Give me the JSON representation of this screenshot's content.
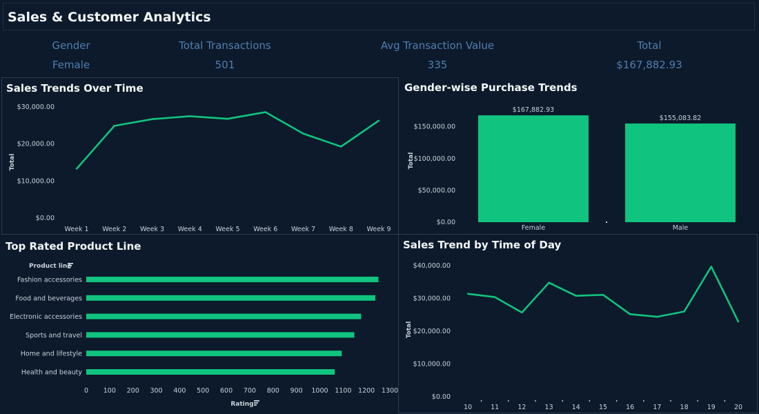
{
  "header": {
    "title": "Sales & Customer Analytics"
  },
  "kpis": [
    {
      "label": "Gender",
      "value": "Female"
    },
    {
      "label": "Total Transactions",
      "value": "501"
    },
    {
      "label": "Avg Transaction Value",
      "value": "335"
    },
    {
      "label": "Total",
      "value": "$167,882.93"
    }
  ],
  "colors": {
    "accent": "#10c47f",
    "background": "#0d1a2b",
    "kpi_text": "#4f7fb0"
  },
  "panels": {
    "sales_trends": "Sales Trends Over Time",
    "gender_trends": "Gender-wise Purchase Trends",
    "top_rated": "Top Rated Product Line",
    "time_of_day": "Sales Trend by Time of Day"
  },
  "chart_data": [
    {
      "id": "sales_trends",
      "type": "line",
      "title": "Sales Trends Over Time",
      "ylabel": "Total",
      "ylim": [
        0,
        30000
      ],
      "yticks": [
        "$0.00",
        "$10,000.00",
        "$20,000.00",
        "$30,000.00"
      ],
      "categories": [
        "Week 1",
        "Week 2",
        "Week 3",
        "Week 4",
        "Week 5",
        "Week 6",
        "Week 7",
        "Week 8",
        "Week 9"
      ],
      "values": [
        13300,
        24900,
        26700,
        27500,
        26800,
        28600,
        22800,
        19300,
        26300
      ]
    },
    {
      "id": "gender_trends",
      "type": "bar",
      "title": "Gender-wise Purchase Trends",
      "ylabel": "Total",
      "ylim": [
        0,
        180000
      ],
      "yticks": [
        "$0.00",
        "$50,000.00",
        "$100,000.00",
        "$150,000.00"
      ],
      "categories": [
        "Female",
        "Male"
      ],
      "values": [
        167882.93,
        155083.82
      ],
      "labels": [
        "$167,882.93",
        "$155,083.82"
      ]
    },
    {
      "id": "top_rated",
      "type": "bar",
      "orientation": "horizontal",
      "title": "Top Rated Product Line",
      "ylabel": "Product line",
      "xlabel": "Rating",
      "xlim": [
        0,
        1300
      ],
      "xticks": [
        "0",
        "100",
        "200",
        "300",
        "400",
        "500",
        "600",
        "700",
        "800",
        "900",
        "1000",
        "1100",
        "1200",
        "1300"
      ],
      "categories": [
        "Fashion accessories",
        "Food and beverages",
        "Electronic accessories",
        "Sports and travel",
        "Home and lifestyle",
        "Health and beauty"
      ],
      "values": [
        1251,
        1238,
        1177,
        1148,
        1094,
        1064
      ]
    },
    {
      "id": "time_of_day",
      "type": "line",
      "title": "Sales Trend by Time of Day",
      "ylabel": "Total",
      "ylim": [
        0,
        40000
      ],
      "yticks": [
        "$0.00",
        "$10,000.00",
        "$20,000.00",
        "$30,000.00",
        "$40,000.00"
      ],
      "categories": [
        "10",
        "11",
        "12",
        "13",
        "14",
        "15",
        "16",
        "17",
        "18",
        "19",
        "20"
      ],
      "values": [
        31400,
        30400,
        25700,
        34800,
        30800,
        31100,
        25200,
        24400,
        26000,
        39700,
        22900
      ]
    }
  ]
}
